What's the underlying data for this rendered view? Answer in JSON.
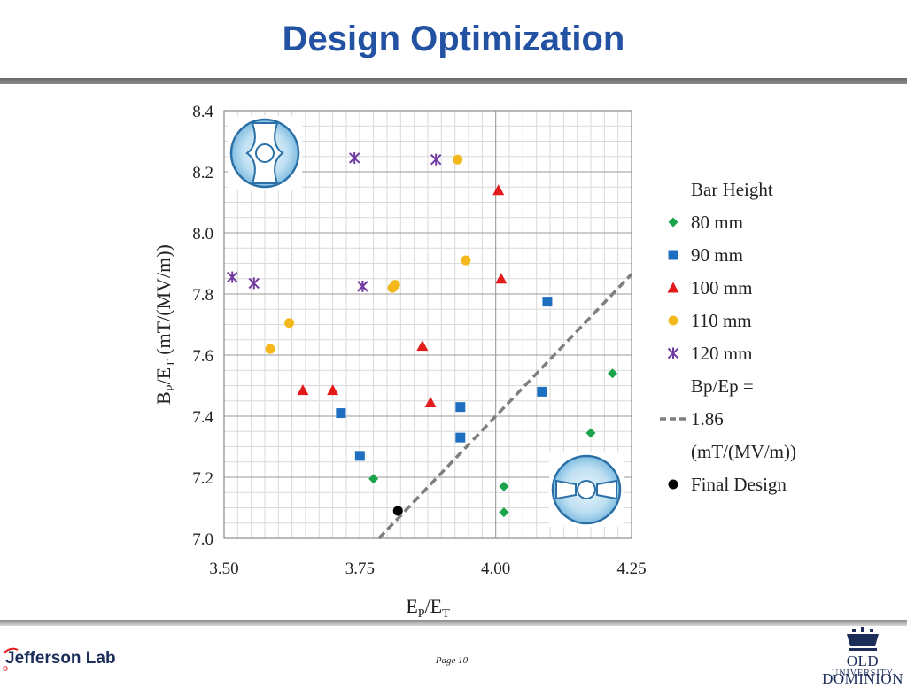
{
  "slide": {
    "title": "Design Optimization",
    "page_label": "Page 10",
    "left_logo_text": "Jefferson Lab",
    "right_logo_line1": "OLD DOMINION",
    "right_logo_line2": "UNIVERSITY"
  },
  "colors": {
    "title": "#2452a3",
    "s80": "#1aa34a",
    "s90": "#1f6fc0",
    "s100": "#e31a1a",
    "s110": "#f5b81c",
    "s120": "#6f3aa0",
    "final": "#000000",
    "bp_line": "#7f7f7f"
  },
  "chart_data": {
    "type": "scatter",
    "title": "",
    "xlabel": "EP/ET",
    "ylabel": "BP/ET   (mT/(MV/m))",
    "xlim": [
      3.5,
      4.25
    ],
    "ylim": [
      7.0,
      8.4
    ],
    "x_ticks": [
      "3.50",
      "3.75",
      "4.00",
      "4.25"
    ],
    "y_ticks": [
      "7.0",
      "7.2",
      "7.4",
      "7.6",
      "7.8",
      "8.0",
      "8.2",
      "8.4"
    ],
    "grid": true,
    "legend_title": "Bar Height",
    "legend_position": "right",
    "series": [
      {
        "name": "80 mm",
        "marker": "diamond",
        "color": "#1aa34a",
        "points": [
          [
            3.775,
            7.195
          ],
          [
            4.015,
            7.17
          ],
          [
            4.015,
            7.085
          ],
          [
            4.175,
            7.345
          ],
          [
            4.215,
            7.54
          ]
        ]
      },
      {
        "name": "90 mm",
        "marker": "square",
        "color": "#1f6fc0",
        "points": [
          [
            3.715,
            7.41
          ],
          [
            3.75,
            7.27
          ],
          [
            3.935,
            7.43
          ],
          [
            3.935,
            7.33
          ],
          [
            4.085,
            7.48
          ],
          [
            4.095,
            7.775
          ]
        ]
      },
      {
        "name": "100 mm",
        "marker": "triangle",
        "color": "#e31a1a",
        "points": [
          [
            3.645,
            7.485
          ],
          [
            3.7,
            7.485
          ],
          [
            3.865,
            7.63
          ],
          [
            3.88,
            7.445
          ],
          [
            4.005,
            8.14
          ],
          [
            4.01,
            7.85
          ]
        ]
      },
      {
        "name": "110 mm",
        "marker": "circle",
        "color": "#f5b81c",
        "points": [
          [
            3.585,
            7.62
          ],
          [
            3.62,
            7.705
          ],
          [
            3.81,
            7.82
          ],
          [
            3.815,
            7.83
          ],
          [
            3.93,
            8.24
          ],
          [
            3.945,
            7.91
          ]
        ]
      },
      {
        "name": "120 mm",
        "marker": "asterisk",
        "color": "#6f3aa0",
        "points": [
          [
            3.515,
            7.855
          ],
          [
            3.555,
            7.835
          ],
          [
            3.74,
            8.245
          ],
          [
            3.755,
            7.825
          ],
          [
            3.89,
            8.24
          ]
        ]
      },
      {
        "name": "Final Design",
        "marker": "dot",
        "color": "#000000",
        "points": [
          [
            3.82,
            7.09
          ]
        ]
      }
    ],
    "reference_line": {
      "legend": [
        "Bp/Ep =",
        "1.86",
        "(mT/(MV/m))"
      ],
      "slope": 1.86,
      "style": "dashed",
      "color": "#7f7f7f"
    },
    "insets": [
      "cavity-cross-section-top-left",
      "cavity-cross-section-bottom-right"
    ]
  }
}
